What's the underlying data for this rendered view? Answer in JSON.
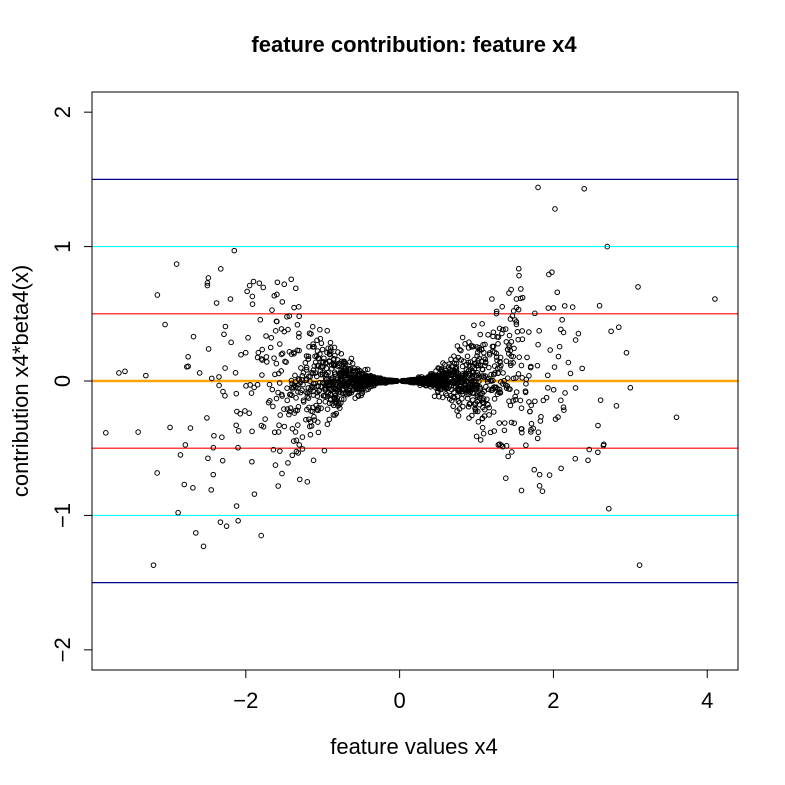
{
  "chart_data": {
    "type": "scatter",
    "title": "feature contribution: feature x4",
    "xlabel": "feature values x4",
    "ylabel": "contribution  x4*beta4(x)",
    "xlim": [
      -4.0,
      4.4
    ],
    "ylim": [
      -2.15,
      2.15
    ],
    "x_ticks": [
      -2,
      0,
      2,
      4
    ],
    "x_tick_labels": [
      "−2",
      "0",
      "2",
      "4"
    ],
    "y_ticks": [
      -2,
      -1,
      0,
      1,
      2
    ],
    "y_tick_labels": [
      "−2",
      "−1",
      "0",
      "1",
      "2"
    ],
    "grid": false,
    "legend": "none",
    "reference_lines": [
      {
        "y": 1.5,
        "color": "#00008b"
      },
      {
        "y": 1.0,
        "color": "#00ffff"
      },
      {
        "y": 0.5,
        "color": "#ff0000"
      },
      {
        "y": 0.0,
        "color": "#ffa500"
      },
      {
        "y": -0.5,
        "color": "#ff0000"
      },
      {
        "y": -1.0,
        "color": "#00ffff"
      },
      {
        "y": -1.5,
        "color": "#00008b"
      }
    ],
    "point_style": {
      "marker": "open-circle",
      "color": "#000000"
    },
    "points": [
      {
        "x": -3.65,
        "y": 0.06
      },
      {
        "x": -3.4,
        "y": -0.38
      },
      {
        "x": -3.3,
        "y": 0.04
      },
      {
        "x": -3.2,
        "y": -1.37
      },
      {
        "x": -3.15,
        "y": 0.64
      },
      {
        "x": -3.05,
        "y": 0.42
      },
      {
        "x": -2.9,
        "y": 0.87
      },
      {
        "x": -2.88,
        "y": -0.98
      },
      {
        "x": -2.85,
        "y": -0.55
      },
      {
        "x": -2.8,
        "y": -0.77
      },
      {
        "x": -2.75,
        "y": 0.18
      },
      {
        "x": -2.72,
        "y": -0.35
      },
      {
        "x": -2.68,
        "y": 0.33
      },
      {
        "x": -2.65,
        "y": -1.13
      },
      {
        "x": -2.6,
        "y": 0.06
      },
      {
        "x": -2.55,
        "y": -1.23
      },
      {
        "x": -2.5,
        "y": 0.71
      },
      {
        "x": -2.45,
        "y": -0.81
      },
      {
        "x": -2.38,
        "y": 0.58
      },
      {
        "x": -2.33,
        "y": -1.05
      },
      {
        "x": -2.25,
        "y": -1.08
      },
      {
        "x": -2.2,
        "y": 0.61
      },
      {
        "x": -2.15,
        "y": 0.97
      },
      {
        "x": -2.12,
        "y": -0.93
      },
      {
        "x": -2.1,
        "y": -1.04
      },
      {
        "x": -1.95,
        "y": 0.71
      },
      {
        "x": -1.9,
        "y": 0.74
      },
      {
        "x": -1.8,
        "y": -1.15
      },
      {
        "x": -1.5,
        "y": 0.72
      },
      {
        "x": -1.35,
        "y": 0.69
      },
      {
        "x": -1.2,
        "y": -0.75
      },
      {
        "x": 1.2,
        "y": 0.61
      },
      {
        "x": 1.45,
        "y": 0.68
      },
      {
        "x": 1.6,
        "y": 0.62
      },
      {
        "x": 1.75,
        "y": -0.66
      },
      {
        "x": 1.8,
        "y": 1.44
      },
      {
        "x": 1.82,
        "y": -0.78
      },
      {
        "x": 1.95,
        "y": -0.7
      },
      {
        "x": 1.98,
        "y": 0.81
      },
      {
        "x": 2.02,
        "y": 1.28
      },
      {
        "x": 2.05,
        "y": 0.66
      },
      {
        "x": 2.1,
        "y": -0.65
      },
      {
        "x": 2.25,
        "y": 0.55
      },
      {
        "x": 2.4,
        "y": 1.43
      },
      {
        "x": 2.45,
        "y": -0.59
      },
      {
        "x": 2.6,
        "y": 0.56
      },
      {
        "x": 2.65,
        "y": -0.48
      },
      {
        "x": 2.7,
        "y": 1.0
      },
      {
        "x": 2.72,
        "y": -0.95
      },
      {
        "x": 2.75,
        "y": 0.37
      },
      {
        "x": 2.85,
        "y": 0.4
      },
      {
        "x": 2.95,
        "y": 0.21
      },
      {
        "x": 3.0,
        "y": -0.05
      },
      {
        "x": 3.1,
        "y": 0.7
      },
      {
        "x": 3.12,
        "y": -1.37
      },
      {
        "x": 3.6,
        "y": -0.27
      },
      {
        "x": 4.1,
        "y": 0.61
      }
    ]
  }
}
